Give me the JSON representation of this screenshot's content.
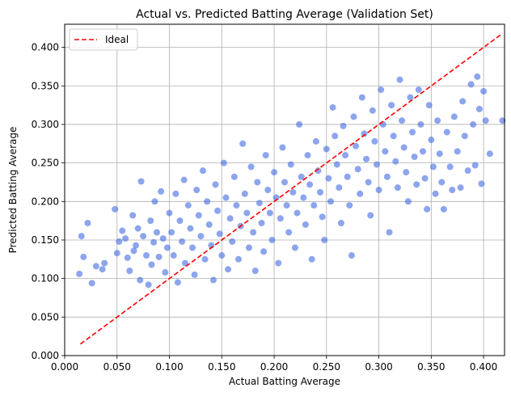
{
  "chart_data": {
    "type": "scatter",
    "title": "Actual vs. Predicted Batting Average (Validation Set)",
    "xlabel": "Actual Batting Average",
    "ylabel": "Predicted Batting Average",
    "xlim": [
      0.0,
      0.42
    ],
    "ylim": [
      0.0,
      0.43
    ],
    "x_ticks": [
      "0.000",
      "0.050",
      "0.100",
      "0.150",
      "0.200",
      "0.250",
      "0.300",
      "0.350",
      "0.400"
    ],
    "y_ticks": [
      "0.000",
      "0.050",
      "0.100",
      "0.150",
      "0.200",
      "0.250",
      "0.300",
      "0.350",
      "0.400"
    ],
    "grid": true,
    "legend_position": "top-left",
    "series": [
      {
        "name": "",
        "kind": "scatter",
        "color": "#4169e1",
        "points": [
          [
            0.016,
            0.155
          ],
          [
            0.018,
            0.128
          ],
          [
            0.014,
            0.106
          ],
          [
            0.022,
            0.172
          ],
          [
            0.026,
            0.094
          ],
          [
            0.03,
            0.116
          ],
          [
            0.036,
            0.112
          ],
          [
            0.038,
            0.12
          ],
          [
            0.048,
            0.19
          ],
          [
            0.05,
            0.133
          ],
          [
            0.052,
            0.148
          ],
          [
            0.055,
            0.162
          ],
          [
            0.058,
            0.152
          ],
          [
            0.06,
            0.127
          ],
          [
            0.062,
            0.11
          ],
          [
            0.065,
            0.182
          ],
          [
            0.066,
            0.136
          ],
          [
            0.068,
            0.143
          ],
          [
            0.07,
            0.165
          ],
          [
            0.072,
            0.098
          ],
          [
            0.073,
            0.226
          ],
          [
            0.075,
            0.155
          ],
          [
            0.078,
            0.13
          ],
          [
            0.08,
            0.092
          ],
          [
            0.082,
            0.175
          ],
          [
            0.083,
            0.118
          ],
          [
            0.085,
            0.147
          ],
          [
            0.086,
            0.2
          ],
          [
            0.088,
            0.16
          ],
          [
            0.09,
            0.128
          ],
          [
            0.092,
            0.213
          ],
          [
            0.094,
            0.152
          ],
          [
            0.096,
            0.108
          ],
          [
            0.098,
            0.14
          ],
          [
            0.1,
            0.185
          ],
          [
            0.102,
            0.16
          ],
          [
            0.104,
            0.13
          ],
          [
            0.106,
            0.21
          ],
          [
            0.108,
            0.095
          ],
          [
            0.11,
            0.175
          ],
          [
            0.112,
            0.148
          ],
          [
            0.114,
            0.228
          ],
          [
            0.115,
            0.12
          ],
          [
            0.118,
            0.195
          ],
          [
            0.12,
            0.165
          ],
          [
            0.122,
            0.14
          ],
          [
            0.124,
            0.105
          ],
          [
            0.126,
            0.215
          ],
          [
            0.128,
            0.182
          ],
          [
            0.13,
            0.155
          ],
          [
            0.132,
            0.24
          ],
          [
            0.134,
            0.125
          ],
          [
            0.136,
            0.2
          ],
          [
            0.138,
            0.17
          ],
          [
            0.14,
            0.143
          ],
          [
            0.142,
            0.098
          ],
          [
            0.144,
            0.222
          ],
          [
            0.146,
            0.188
          ],
          [
            0.148,
            0.158
          ],
          [
            0.15,
            0.13
          ],
          [
            0.152,
            0.25
          ],
          [
            0.154,
            0.205
          ],
          [
            0.156,
            0.112
          ],
          [
            0.158,
            0.178
          ],
          [
            0.16,
            0.148
          ],
          [
            0.162,
            0.232
          ],
          [
            0.164,
            0.195
          ],
          [
            0.166,
            0.125
          ],
          [
            0.168,
            0.168
          ],
          [
            0.17,
            0.275
          ],
          [
            0.172,
            0.21
          ],
          [
            0.174,
            0.185
          ],
          [
            0.176,
            0.14
          ],
          [
            0.178,
            0.245
          ],
          [
            0.18,
            0.16
          ],
          [
            0.182,
            0.11
          ],
          [
            0.184,
            0.225
          ],
          [
            0.186,
            0.198
          ],
          [
            0.188,
            0.172
          ],
          [
            0.19,
            0.135
          ],
          [
            0.192,
            0.26
          ],
          [
            0.194,
            0.215
          ],
          [
            0.196,
            0.185
          ],
          [
            0.198,
            0.15
          ],
          [
            0.2,
            0.238
          ],
          [
            0.202,
            0.205
          ],
          [
            0.204,
            0.12
          ],
          [
            0.206,
            0.178
          ],
          [
            0.208,
            0.27
          ],
          [
            0.21,
            0.225
          ],
          [
            0.212,
            0.195
          ],
          [
            0.214,
            0.16
          ],
          [
            0.216,
            0.248
          ],
          [
            0.218,
            0.212
          ],
          [
            0.22,
            0.14
          ],
          [
            0.222,
            0.185
          ],
          [
            0.224,
            0.3
          ],
          [
            0.226,
            0.232
          ],
          [
            0.228,
            0.205
          ],
          [
            0.23,
            0.17
          ],
          [
            0.232,
            0.26
          ],
          [
            0.234,
            0.222
          ],
          [
            0.236,
            0.125
          ],
          [
            0.238,
            0.195
          ],
          [
            0.24,
            0.278
          ],
          [
            0.242,
            0.24
          ],
          [
            0.244,
            0.212
          ],
          [
            0.246,
            0.18
          ],
          [
            0.248,
            0.15
          ],
          [
            0.25,
            0.268
          ],
          [
            0.252,
            0.23
          ],
          [
            0.254,
            0.2
          ],
          [
            0.256,
            0.322
          ],
          [
            0.258,
            0.285
          ],
          [
            0.26,
            0.248
          ],
          [
            0.262,
            0.218
          ],
          [
            0.264,
            0.172
          ],
          [
            0.266,
            0.298
          ],
          [
            0.268,
            0.26
          ],
          [
            0.27,
            0.232
          ],
          [
            0.272,
            0.195
          ],
          [
            0.274,
            0.13
          ],
          [
            0.276,
            0.31
          ],
          [
            0.278,
            0.272
          ],
          [
            0.28,
            0.242
          ],
          [
            0.282,
            0.21
          ],
          [
            0.284,
            0.335
          ],
          [
            0.286,
            0.288
          ],
          [
            0.288,
            0.255
          ],
          [
            0.29,
            0.225
          ],
          [
            0.292,
            0.182
          ],
          [
            0.294,
            0.318
          ],
          [
            0.296,
            0.278
          ],
          [
            0.298,
            0.248
          ],
          [
            0.3,
            0.215
          ],
          [
            0.302,
            0.345
          ],
          [
            0.304,
            0.3
          ],
          [
            0.306,
            0.265
          ],
          [
            0.308,
            0.232
          ],
          [
            0.31,
            0.16
          ],
          [
            0.312,
            0.325
          ],
          [
            0.314,
            0.285
          ],
          [
            0.316,
            0.252
          ],
          [
            0.318,
            0.218
          ],
          [
            0.32,
            0.358
          ],
          [
            0.322,
            0.305
          ],
          [
            0.324,
            0.27
          ],
          [
            0.326,
            0.238
          ],
          [
            0.328,
            0.2
          ],
          [
            0.33,
            0.335
          ],
          [
            0.332,
            0.29
          ],
          [
            0.334,
            0.258
          ],
          [
            0.336,
            0.222
          ],
          [
            0.338,
            0.345
          ],
          [
            0.34,
            0.3
          ],
          [
            0.342,
            0.265
          ],
          [
            0.344,
            0.23
          ],
          [
            0.346,
            0.19
          ],
          [
            0.348,
            0.325
          ],
          [
            0.35,
            0.28
          ],
          [
            0.352,
            0.245
          ],
          [
            0.354,
            0.21
          ],
          [
            0.356,
            0.305
          ],
          [
            0.358,
            0.262
          ],
          [
            0.36,
            0.225
          ],
          [
            0.362,
            0.19
          ],
          [
            0.365,
            0.29
          ],
          [
            0.368,
            0.245
          ],
          [
            0.37,
            0.215
          ],
          [
            0.372,
            0.31
          ],
          [
            0.375,
            0.265
          ],
          [
            0.378,
            0.218
          ],
          [
            0.38,
            0.33
          ],
          [
            0.382,
            0.285
          ],
          [
            0.385,
            0.24
          ],
          [
            0.388,
            0.352
          ],
          [
            0.39,
            0.3
          ],
          [
            0.392,
            0.247
          ],
          [
            0.394,
            0.362
          ],
          [
            0.396,
            0.32
          ],
          [
            0.398,
            0.223
          ],
          [
            0.4,
            0.343
          ],
          [
            0.402,
            0.305
          ],
          [
            0.406,
            0.262
          ],
          [
            0.418,
            0.305
          ]
        ]
      },
      {
        "name": "Ideal",
        "kind": "line",
        "color": "#ff0000",
        "dash": "dashed",
        "x": [
          0.015,
          0.418
        ],
        "y": [
          0.015,
          0.418
        ]
      }
    ]
  }
}
